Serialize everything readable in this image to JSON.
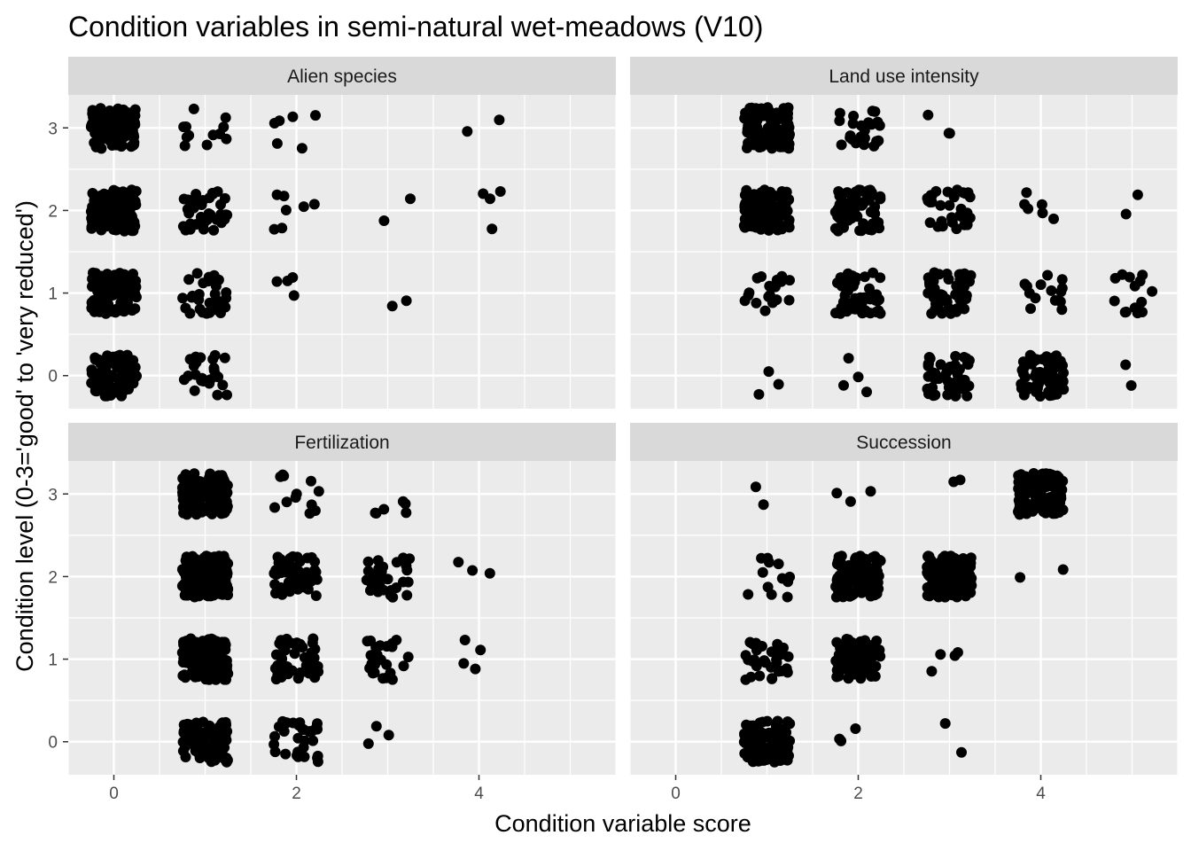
{
  "chart_data": {
    "type": "scatter",
    "title": "Condition variables in semi-natural wet-meadows (V10)",
    "xlabel": "Condition variable score",
    "ylabel": "Condition level (0-3='good' to 'very reduced')",
    "xlim": [
      -0.5,
      5.5
    ],
    "ylim": [
      -0.4,
      3.4
    ],
    "x_ticks": [
      0,
      2,
      4
    ],
    "y_ticks": [
      0,
      1,
      2,
      3
    ],
    "grid": true,
    "jitter": true,
    "panels": [
      {
        "name": "Alien species",
        "points": [
          {
            "x": 0,
            "y": 0,
            "n": 90
          },
          {
            "x": 1,
            "y": 0,
            "n": 25
          },
          {
            "x": 0,
            "y": 1,
            "n": 110
          },
          {
            "x": 1,
            "y": 1,
            "n": 30
          },
          {
            "x": 2,
            "y": 1,
            "n": 4
          },
          {
            "x": 3,
            "y": 1,
            "n": 2
          },
          {
            "x": 0,
            "y": 2,
            "n": 140
          },
          {
            "x": 1,
            "y": 2,
            "n": 40
          },
          {
            "x": 2,
            "y": 2,
            "n": 7
          },
          {
            "x": 3,
            "y": 2,
            "n": 2
          },
          {
            "x": 4,
            "y": 2,
            "n": 4
          },
          {
            "x": 0,
            "y": 3,
            "n": 110
          },
          {
            "x": 1,
            "y": 3,
            "n": 12
          },
          {
            "x": 2,
            "y": 3,
            "n": 6
          },
          {
            "x": 4,
            "y": 3,
            "n": 2
          }
        ]
      },
      {
        "name": "Land use intensity",
        "points": [
          {
            "x": 1,
            "y": 0,
            "n": 3
          },
          {
            "x": 2,
            "y": 0,
            "n": 4
          },
          {
            "x": 3,
            "y": 0,
            "n": 50
          },
          {
            "x": 4,
            "y": 0,
            "n": 70
          },
          {
            "x": 5,
            "y": 0,
            "n": 2
          },
          {
            "x": 1,
            "y": 1,
            "n": 22
          },
          {
            "x": 2,
            "y": 1,
            "n": 60
          },
          {
            "x": 3,
            "y": 1,
            "n": 45
          },
          {
            "x": 4,
            "y": 1,
            "n": 14
          },
          {
            "x": 5,
            "y": 1,
            "n": 14
          },
          {
            "x": 1,
            "y": 2,
            "n": 140
          },
          {
            "x": 2,
            "y": 2,
            "n": 70
          },
          {
            "x": 3,
            "y": 2,
            "n": 30
          },
          {
            "x": 4,
            "y": 2,
            "n": 6
          },
          {
            "x": 5,
            "y": 2,
            "n": 2
          },
          {
            "x": 1,
            "y": 3,
            "n": 120
          },
          {
            "x": 2,
            "y": 3,
            "n": 25
          },
          {
            "x": 3,
            "y": 3,
            "n": 3
          }
        ]
      },
      {
        "name": "Fertilization",
        "points": [
          {
            "x": 1,
            "y": 0,
            "n": 90
          },
          {
            "x": 2,
            "y": 0,
            "n": 30
          },
          {
            "x": 3,
            "y": 0,
            "n": 3
          },
          {
            "x": 1,
            "y": 1,
            "n": 140
          },
          {
            "x": 2,
            "y": 1,
            "n": 50
          },
          {
            "x": 3,
            "y": 1,
            "n": 25
          },
          {
            "x": 4,
            "y": 1,
            "n": 4
          },
          {
            "x": 1,
            "y": 2,
            "n": 200
          },
          {
            "x": 2,
            "y": 2,
            "n": 55
          },
          {
            "x": 3,
            "y": 2,
            "n": 28
          },
          {
            "x": 4,
            "y": 2,
            "n": 3
          },
          {
            "x": 1,
            "y": 3,
            "n": 140
          },
          {
            "x": 2,
            "y": 3,
            "n": 12
          },
          {
            "x": 3,
            "y": 3,
            "n": 6
          }
        ]
      },
      {
        "name": "Succession",
        "points": [
          {
            "x": 1,
            "y": 0,
            "n": 110
          },
          {
            "x": 2,
            "y": 0,
            "n": 3
          },
          {
            "x": 3,
            "y": 0,
            "n": 2
          },
          {
            "x": 1,
            "y": 1,
            "n": 30
          },
          {
            "x": 2,
            "y": 1,
            "n": 75
          },
          {
            "x": 3,
            "y": 1,
            "n": 4
          },
          {
            "x": 1,
            "y": 2,
            "n": 12
          },
          {
            "x": 2,
            "y": 2,
            "n": 110
          },
          {
            "x": 3,
            "y": 2,
            "n": 150
          },
          {
            "x": 4,
            "y": 2,
            "n": 2
          },
          {
            "x": 1,
            "y": 3,
            "n": 2
          },
          {
            "x": 2,
            "y": 3,
            "n": 3
          },
          {
            "x": 3,
            "y": 3,
            "n": 2
          },
          {
            "x": 4,
            "y": 3,
            "n": 120
          }
        ]
      }
    ]
  }
}
